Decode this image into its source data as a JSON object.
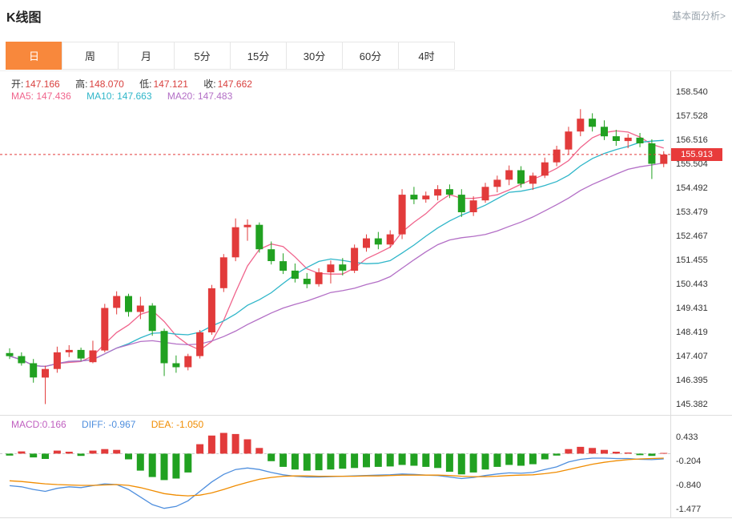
{
  "header": {
    "title": "K线图",
    "link": "基本面分析>"
  },
  "tabs": {
    "items": [
      {
        "label": "日",
        "active": true
      },
      {
        "label": "周",
        "active": false
      },
      {
        "label": "月",
        "active": false
      },
      {
        "label": "5分",
        "active": false
      },
      {
        "label": "15分",
        "active": false
      },
      {
        "label": "30分",
        "active": false
      },
      {
        "label": "60分",
        "active": false
      },
      {
        "label": "4时",
        "active": false
      }
    ]
  },
  "ohlc": {
    "open_label": "开:",
    "open": "147.166",
    "high_label": "高:",
    "high": "148.070",
    "low_label": "低:",
    "low": "147.121",
    "close_label": "收:",
    "close": "147.662"
  },
  "ma": {
    "ma5_label": "MA5:",
    "ma5": "147.436",
    "ma10_label": "MA10:",
    "ma10": "147.663",
    "ma20_label": "MA20:",
    "ma20": "147.483"
  },
  "macd_info": {
    "macd_label": "MACD:",
    "macd": "0.166",
    "diff_label": "DIFF:",
    "diff": "-0.967",
    "dea_label": "DEA:",
    "dea": "-1.050"
  },
  "price_marker": {
    "value": "155.913"
  },
  "colors": {
    "up": "#e23b3b",
    "down": "#21a121",
    "ma5": "#f0648c",
    "ma10": "#2fb6c9",
    "ma20": "#b36fc6",
    "diff_line": "#4f8fde",
    "dea_line": "#f08c00",
    "macd_value": "#c05fc0",
    "ohlc_value": "#d9413f",
    "tab_active_bg": "#f8883c",
    "price_badge_bg": "#e83b3b",
    "current_price_line": "#e23b3b"
  },
  "chart_data": {
    "type": "candlestick",
    "title": "K线图",
    "current_price": 155.913,
    "price_axis_labels": [
      "158.540",
      "157.528",
      "156.516",
      "155.504",
      "154.492",
      "153.479",
      "152.467",
      "151.455",
      "150.443",
      "149.431",
      "148.419",
      "147.407",
      "146.395",
      "145.382"
    ],
    "macd_axis_labels": [
      "0.433",
      "-0.204",
      "-0.840",
      "-1.477"
    ],
    "ma_periods": [
      5,
      10,
      20
    ],
    "candles": [
      [
        147.55,
        147.75,
        147.3,
        147.42
      ],
      [
        147.42,
        147.58,
        147.02,
        147.12
      ],
      [
        147.12,
        147.3,
        146.3,
        146.52
      ],
      [
        146.52,
        147.02,
        145.4,
        146.88
      ],
      [
        146.88,
        147.82,
        146.72,
        147.58
      ],
      [
        147.58,
        147.88,
        147.38,
        147.68
      ],
      [
        147.68,
        147.78,
        147.22,
        147.32
      ],
      [
        147.166,
        148.07,
        147.121,
        147.662
      ],
      [
        147.66,
        149.62,
        147.58,
        149.45
      ],
      [
        149.45,
        150.15,
        149.18,
        149.95
      ],
      [
        149.95,
        150.05,
        149.08,
        149.28
      ],
      [
        149.28,
        149.92,
        148.98,
        149.55
      ],
      [
        149.55,
        149.65,
        148.28,
        148.48
      ],
      [
        148.48,
        148.58,
        146.58,
        147.12
      ],
      [
        147.12,
        147.45,
        146.72,
        146.95
      ],
      [
        146.95,
        147.52,
        146.82,
        147.42
      ],
      [
        147.42,
        148.52,
        147.32,
        148.42
      ],
      [
        148.42,
        150.42,
        148.32,
        150.28
      ],
      [
        150.28,
        151.72,
        150.12,
        151.58
      ],
      [
        151.58,
        153.22,
        151.42,
        152.85
      ],
      [
        152.85,
        153.18,
        152.28,
        152.95
      ],
      [
        152.95,
        153.05,
        151.78,
        151.92
      ],
      [
        151.92,
        152.25,
        151.28,
        151.42
      ],
      [
        151.42,
        151.75,
        150.88,
        151.02
      ],
      [
        151.02,
        151.32,
        150.52,
        150.68
      ],
      [
        150.68,
        150.92,
        150.28,
        150.45
      ],
      [
        150.45,
        151.12,
        150.35,
        150.95
      ],
      [
        150.95,
        151.45,
        150.48,
        151.28
      ],
      [
        151.28,
        151.55,
        150.82,
        151.02
      ],
      [
        151.02,
        152.12,
        150.92,
        151.98
      ],
      [
        151.98,
        152.55,
        151.82,
        152.38
      ],
      [
        152.38,
        152.65,
        151.92,
        152.12
      ],
      [
        152.12,
        152.72,
        151.98,
        152.55
      ],
      [
        152.55,
        154.45,
        152.35,
        154.22
      ],
      [
        154.22,
        154.55,
        153.82,
        154.02
      ],
      [
        154.02,
        154.35,
        153.88,
        154.18
      ],
      [
        154.18,
        154.62,
        153.98,
        154.45
      ],
      [
        154.45,
        154.65,
        154.08,
        154.22
      ],
      [
        154.22,
        154.45,
        153.28,
        153.48
      ],
      [
        153.48,
        154.15,
        153.32,
        153.98
      ],
      [
        153.98,
        154.72,
        153.88,
        154.55
      ],
      [
        154.55,
        155.02,
        154.32,
        154.85
      ],
      [
        154.85,
        155.45,
        154.62,
        155.25
      ],
      [
        155.25,
        155.42,
        154.52,
        154.68
      ],
      [
        154.68,
        155.15,
        154.42,
        155.02
      ],
      [
        155.02,
        155.78,
        154.92,
        155.58
      ],
      [
        155.58,
        156.28,
        155.42,
        156.12
      ],
      [
        156.12,
        157.08,
        155.92,
        156.88
      ],
      [
        156.88,
        157.82,
        156.68,
        157.42
      ],
      [
        157.42,
        157.65,
        156.88,
        157.08
      ],
      [
        157.08,
        157.35,
        156.52,
        156.68
      ],
      [
        156.68,
        156.95,
        156.28,
        156.48
      ],
      [
        156.48,
        156.78,
        156.18,
        156.62
      ],
      [
        156.62,
        156.82,
        156.22,
        156.38
      ],
      [
        156.38,
        156.55,
        154.88,
        155.52
      ],
      [
        155.52,
        156.05,
        155.38,
        155.913
      ]
    ],
    "macd": {
      "hist": [
        -0.05,
        0.06,
        -0.1,
        -0.14,
        0.08,
        0.05,
        -0.06,
        0.08,
        0.12,
        0.1,
        -0.15,
        -0.45,
        -0.62,
        -0.7,
        -0.66,
        -0.5,
        0.25,
        0.48,
        0.55,
        0.52,
        0.38,
        0.15,
        -0.2,
        -0.35,
        -0.42,
        -0.45,
        -0.44,
        -0.42,
        -0.4,
        -0.38,
        -0.36,
        -0.35,
        -0.34,
        -0.3,
        -0.32,
        -0.35,
        -0.38,
        -0.48,
        -0.55,
        -0.5,
        -0.42,
        -0.35,
        -0.3,
        -0.32,
        -0.28,
        -0.15,
        -0.05,
        0.12,
        0.18,
        0.15,
        0.1,
        0.05,
        0.03,
        -0.04,
        -0.06,
        0.02
      ],
      "diff": [
        -0.85,
        -0.88,
        -0.95,
        -1.0,
        -0.92,
        -0.88,
        -0.9,
        -0.85,
        -0.8,
        -0.82,
        -0.95,
        -1.15,
        -1.35,
        -1.45,
        -1.4,
        -1.25,
        -1.0,
        -0.75,
        -0.55,
        -0.42,
        -0.38,
        -0.42,
        -0.5,
        -0.56,
        -0.6,
        -0.62,
        -0.62,
        -0.61,
        -0.6,
        -0.59,
        -0.58,
        -0.57,
        -0.56,
        -0.54,
        -0.55,
        -0.57,
        -0.58,
        -0.62,
        -0.66,
        -0.63,
        -0.58,
        -0.54,
        -0.51,
        -0.52,
        -0.5,
        -0.42,
        -0.35,
        -0.22,
        -0.15,
        -0.12,
        -0.12,
        -0.13,
        -0.13,
        -0.15,
        -0.16,
        -0.14
      ],
      "dea": [
        -0.72,
        -0.74,
        -0.77,
        -0.8,
        -0.82,
        -0.83,
        -0.84,
        -0.84,
        -0.83,
        -0.82,
        -0.84,
        -0.9,
        -0.98,
        -1.06,
        -1.1,
        -1.12,
        -1.1,
        -1.04,
        -0.95,
        -0.85,
        -0.76,
        -0.68,
        -0.63,
        -0.6,
        -0.59,
        -0.59,
        -0.6,
        -0.6,
        -0.6,
        -0.6,
        -0.59,
        -0.59,
        -0.58,
        -0.57,
        -0.57,
        -0.57,
        -0.57,
        -0.58,
        -0.6,
        -0.61,
        -0.61,
        -0.6,
        -0.58,
        -0.57,
        -0.56,
        -0.53,
        -0.49,
        -0.42,
        -0.35,
        -0.28,
        -0.23,
        -0.19,
        -0.16,
        -0.14,
        -0.13,
        -0.12
      ]
    }
  }
}
